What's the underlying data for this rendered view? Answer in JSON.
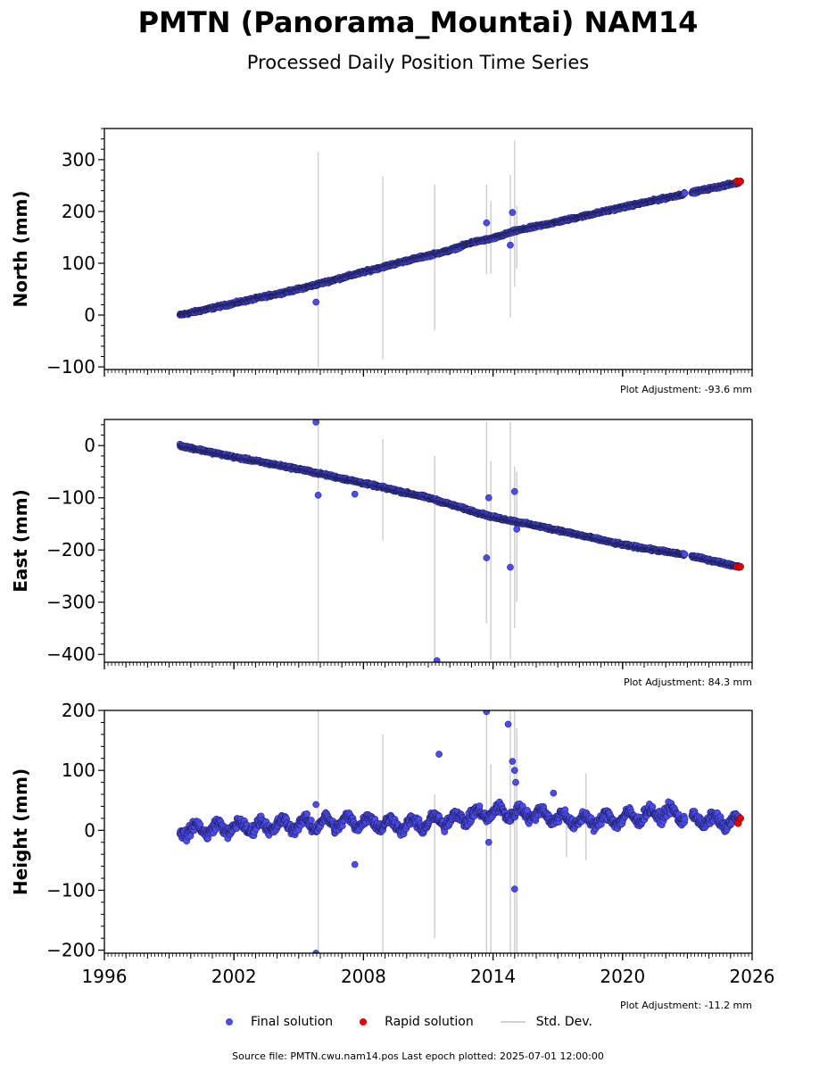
{
  "title": "PMTN (Panorama_Mountai) NAM14",
  "subtitle": "Processed Daily Position Time Series",
  "footer": "Source file: PMTN.cwu.nam14.pos  Last epoch plotted: 2025-07-01 12:00:00",
  "colors": {
    "final": "#4b4bf0",
    "rapid": "#e00000",
    "stddev": "#d0d0d0"
  },
  "legend": {
    "final": "Final solution",
    "rapid": "Rapid solution",
    "stddev": "Std. Dev."
  },
  "chart_data": [
    {
      "type": "scatter",
      "ylabel": "North (mm)",
      "adjustment": "Plot Adjustment: -93.6 mm",
      "xlim": [
        1996,
        2026
      ],
      "ylim": [
        -105,
        360
      ],
      "yticks": [
        -100,
        0,
        100,
        200,
        300
      ],
      "ytick_labels": [
        "−100",
        "0",
        "100",
        "200",
        "300"
      ],
      "xticks": [
        1996,
        2002,
        2008,
        2014,
        2020,
        2026
      ],
      "xtick_labels": [],
      "final_trend": [
        [
          1999.5,
          0
        ],
        [
          2005.0,
          50
        ],
        [
          2010.0,
          105
        ],
        [
          2012.0,
          125
        ],
        [
          2013.0,
          140
        ],
        [
          2014.0,
          148
        ],
        [
          2015.0,
          162
        ],
        [
          2017.0,
          180
        ],
        [
          2020.0,
          208
        ],
        [
          2023.0,
          235
        ],
        [
          2025.4,
          256
        ]
      ],
      "final_outliers": [
        [
          2005.8,
          25
        ],
        [
          2013.7,
          178
        ],
        [
          2014.9,
          198
        ],
        [
          2014.8,
          135
        ]
      ],
      "rapid": [
        [
          2025.3,
          258
        ],
        [
          2025.45,
          258
        ]
      ],
      "stddev_bars": [
        [
          2005.9,
          -100,
          315
        ],
        [
          2008.9,
          -85,
          268
        ],
        [
          2011.3,
          -30,
          252
        ],
        [
          2013.7,
          78,
          252
        ],
        [
          2013.9,
          80,
          220
        ],
        [
          2014.8,
          -5,
          270
        ],
        [
          2015.0,
          55,
          337
        ],
        [
          2015.1,
          90,
          210
        ]
      ]
    },
    {
      "type": "scatter",
      "ylabel": "East (mm)",
      "adjustment": "Plot Adjustment: 84.3 mm",
      "xlim": [
        1996,
        2026
      ],
      "ylim": [
        -415,
        50
      ],
      "yticks": [
        -400,
        -300,
        -200,
        -100,
        0
      ],
      "ytick_labels": [
        "−400",
        "−300",
        "−200",
        "−100",
        "0"
      ],
      "xticks": [
        1996,
        2002,
        2008,
        2014,
        2020,
        2026
      ],
      "xtick_labels": [],
      "final_trend": [
        [
          1999.5,
          0
        ],
        [
          2002.0,
          -22
        ],
        [
          2005.0,
          -45
        ],
        [
          2008.0,
          -72
        ],
        [
          2011.0,
          -100
        ],
        [
          2013.0,
          -125
        ],
        [
          2014.0,
          -137
        ],
        [
          2015.0,
          -145
        ],
        [
          2017.0,
          -162
        ],
        [
          2020.0,
          -190
        ],
        [
          2023.0,
          -210
        ],
        [
          2025.4,
          -232
        ]
      ],
      "final_outliers": [
        [
          2005.8,
          45
        ],
        [
          2005.9,
          -95
        ],
        [
          2007.6,
          -93
        ],
        [
          2013.7,
          -215
        ],
        [
          2013.8,
          -100
        ],
        [
          2014.8,
          -233
        ],
        [
          2015.0,
          -88
        ],
        [
          2015.1,
          -160
        ],
        [
          2011.4,
          -412
        ]
      ],
      "rapid": [
        [
          2025.3,
          -232
        ],
        [
          2025.45,
          -232
        ]
      ],
      "stddev_bars": [
        [
          2005.9,
          -415,
          50
        ],
        [
          2008.9,
          -182,
          12
        ],
        [
          2011.3,
          -415,
          -20
        ],
        [
          2013.7,
          -340,
          45
        ],
        [
          2013.9,
          -410,
          -30
        ],
        [
          2014.8,
          -410,
          45
        ],
        [
          2015.0,
          -350,
          -40
        ],
        [
          2015.1,
          -300,
          -50
        ]
      ]
    },
    {
      "type": "scatter",
      "ylabel": "Height (mm)",
      "adjustment": "Plot Adjustment: -11.2 mm",
      "xlim": [
        1996,
        2026
      ],
      "ylim": [
        -205,
        200
      ],
      "yticks": [
        -200,
        -100,
        0,
        100,
        200
      ],
      "ytick_labels": [
        "−200",
        "−100",
        "0",
        "100",
        "200"
      ],
      "xticks": [
        1996,
        2002,
        2008,
        2014,
        2020,
        2026
      ],
      "xtick_labels": [
        "1996",
        "2002",
        "2008",
        "2014",
        "2020",
        "2026"
      ],
      "final_trend": [
        [
          1999.5,
          0
        ],
        [
          2002.0,
          5
        ],
        [
          2005.0,
          10
        ],
        [
          2008.0,
          15
        ],
        [
          2010.0,
          8
        ],
        [
          2012.0,
          18
        ],
        [
          2014.0,
          30
        ],
        [
          2016.0,
          28
        ],
        [
          2018.0,
          15
        ],
        [
          2020.0,
          20
        ],
        [
          2022.0,
          30
        ],
        [
          2023.5,
          18
        ],
        [
          2025.4,
          12
        ]
      ],
      "final_outliers": [
        [
          2005.8,
          -205
        ],
        [
          2005.8,
          43
        ],
        [
          2007.6,
          -57
        ],
        [
          2011.5,
          127
        ],
        [
          2013.7,
          198
        ],
        [
          2013.8,
          -20
        ],
        [
          2014.7,
          177
        ],
        [
          2014.9,
          115
        ],
        [
          2015.0,
          100
        ],
        [
          2015.05,
          80
        ],
        [
          2015.0,
          -98
        ],
        [
          2016.8,
          62
        ]
      ],
      "rapid": [
        [
          2025.35,
          12
        ],
        [
          2025.45,
          20
        ]
      ],
      "stddev_bars": [
        [
          2005.9,
          -205,
          200
        ],
        [
          2008.9,
          -205,
          160
        ],
        [
          2011.3,
          -180,
          60
        ],
        [
          2013.7,
          -205,
          200
        ],
        [
          2013.9,
          -205,
          110
        ],
        [
          2014.8,
          -205,
          200
        ],
        [
          2015.0,
          -205,
          200
        ],
        [
          2015.1,
          -205,
          170
        ],
        [
          2018.3,
          -50,
          95
        ],
        [
          2017.4,
          -45,
          20
        ]
      ]
    }
  ]
}
